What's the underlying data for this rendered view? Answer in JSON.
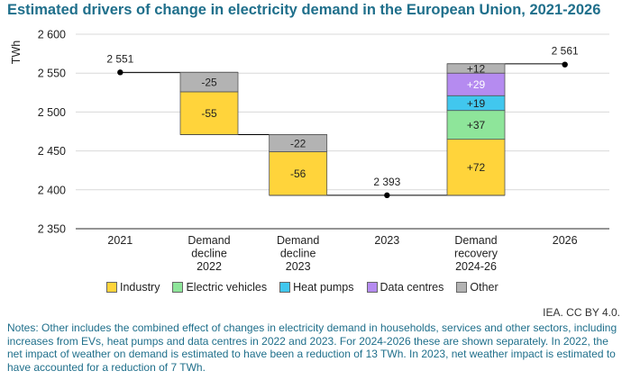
{
  "chart_data": {
    "type": "waterfall",
    "title": "Estimated drivers of change in electricity demand in the European Union, 2021-2026",
    "ylabel": "TWh",
    "ylim": [
      2350,
      2600
    ],
    "yticks": [
      2350,
      2400,
      2450,
      2500,
      2550,
      2600
    ],
    "ytick_labels": [
      "2 350",
      "2 400",
      "2 450",
      "2 500",
      "2 550",
      "2 600"
    ],
    "categories": [
      [
        "2021"
      ],
      [
        "Demand",
        "decline",
        "2022"
      ],
      [
        "Demand",
        "decline",
        "2023"
      ],
      [
        "2023"
      ],
      [
        "Demand",
        "recovery",
        "2024-26"
      ],
      [
        "2026"
      ]
    ],
    "totals": [
      {
        "category_index": 0,
        "value": 2551,
        "label": "2 551"
      },
      {
        "category_index": 3,
        "value": 2393,
        "label": "2 393"
      },
      {
        "category_index": 5,
        "value": 2561,
        "label": "2 561"
      }
    ],
    "steps": [
      {
        "category_index": 1,
        "segments": [
          {
            "series": "Industry",
            "value": -55,
            "label": "-55"
          },
          {
            "series": "Other",
            "value": -25,
            "label": "-25"
          }
        ]
      },
      {
        "category_index": 2,
        "segments": [
          {
            "series": "Industry",
            "value": -56,
            "label": "-56"
          },
          {
            "series": "Other",
            "value": -22,
            "label": "-22"
          }
        ]
      },
      {
        "category_index": 4,
        "segments": [
          {
            "series": "Industry",
            "value": 72,
            "label": "+72"
          },
          {
            "series": "Electric vehicles",
            "value": 37,
            "label": "+37"
          },
          {
            "series": "Heat pumps",
            "value": 19,
            "label": "+19"
          },
          {
            "series": "Data centres",
            "value": 29,
            "label": "+29"
          },
          {
            "series": "Other",
            "value": 12,
            "label": "+12"
          }
        ]
      }
    ],
    "series": [
      {
        "name": "Industry",
        "color": "#ffd43b"
      },
      {
        "name": "Electric vehicles",
        "color": "#8ee59a"
      },
      {
        "name": "Heat pumps",
        "color": "#41c7ee"
      },
      {
        "name": "Data centres",
        "color": "#b58bf0"
      },
      {
        "name": "Other",
        "color": "#b3b3b3"
      }
    ]
  },
  "source": "IEA. CC BY 4.0.",
  "notes": "Notes: Other includes the combined effect of changes in electricity demand in households, services and other sectors, including increases from EVs, heat pumps and data centres in 2022 and 2023. For 2024-2026 these are shown separately. In 2022, the net impact of weather on demand is estimated to have been a reduction of 13 TWh. In 2023, net weather impact is estimated to have accounted for a reduction of 7 TWh."
}
